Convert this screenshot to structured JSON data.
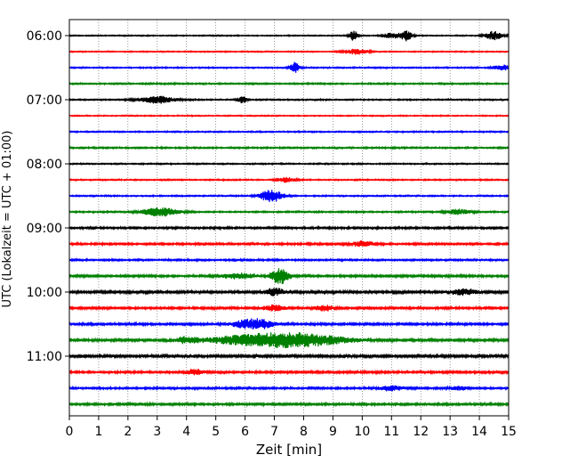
{
  "chart_data": {
    "type": "line",
    "title": "",
    "xlabel": "Zeit  [min]",
    "ylabel": "UTC (Lokalzeit = UTC + 01:00)",
    "xlim": [
      0,
      15
    ],
    "xticks": [
      0,
      1,
      2,
      3,
      4,
      5,
      6,
      7,
      8,
      9,
      10,
      11,
      12,
      13,
      14,
      15
    ],
    "xtick_labels": [
      "0",
      "1",
      "2",
      "3",
      "4",
      "5",
      "6",
      "7",
      "8",
      "9",
      "10",
      "11",
      "12",
      "13",
      "14",
      "15"
    ],
    "yticks": [
      {
        "trace": 0,
        "label": "06:00"
      },
      {
        "trace": 4,
        "label": "07:00"
      },
      {
        "trace": 8,
        "label": "08:00"
      },
      {
        "trace": 12,
        "label": "09:00"
      },
      {
        "trace": 16,
        "label": "10:00"
      },
      {
        "trace": 20,
        "label": "11:00"
      }
    ],
    "trace_interval_minutes": 15,
    "grid": "vertical dotted",
    "color_cycle": [
      "#000000",
      "#ff0000",
      "#0000ff",
      "#008000"
    ],
    "series": [
      {
        "start": "06:00",
        "noise": 0.5,
        "events": [
          {
            "t": 9.7,
            "amp": 6,
            "dur": 0.15
          },
          {
            "t": 11.5,
            "amp": 6,
            "dur": 0.2
          },
          {
            "t": 14.5,
            "amp": 5,
            "dur": 0.3
          },
          {
            "t": 11.0,
            "amp": 3,
            "dur": 0.3
          }
        ]
      },
      {
        "start": "06:15",
        "noise": 0.5,
        "events": [
          {
            "t": 9.8,
            "amp": 3,
            "dur": 0.4
          }
        ]
      },
      {
        "start": "06:30",
        "noise": 0.6,
        "events": [
          {
            "t": 7.7,
            "amp": 6,
            "dur": 0.15
          },
          {
            "t": 14.8,
            "amp": 3,
            "dur": 0.3
          }
        ]
      },
      {
        "start": "06:45",
        "noise": 0.7,
        "events": []
      },
      {
        "start": "07:00",
        "noise": 0.6,
        "events": [
          {
            "t": 3.0,
            "amp": 4,
            "dur": 0.6
          },
          {
            "t": 5.9,
            "amp": 4,
            "dur": 0.15
          }
        ]
      },
      {
        "start": "07:15",
        "noise": 0.5,
        "events": []
      },
      {
        "start": "07:30",
        "noise": 0.6,
        "events": []
      },
      {
        "start": "07:45",
        "noise": 0.7,
        "events": []
      },
      {
        "start": "08:00",
        "noise": 0.6,
        "events": []
      },
      {
        "start": "08:15",
        "noise": 0.6,
        "events": [
          {
            "t": 7.4,
            "amp": 3,
            "dur": 0.3
          }
        ]
      },
      {
        "start": "08:30",
        "noise": 0.6,
        "events": [
          {
            "t": 6.9,
            "amp": 7,
            "dur": 0.4
          }
        ]
      },
      {
        "start": "08:45",
        "noise": 0.7,
        "events": [
          {
            "t": 3.1,
            "amp": 5,
            "dur": 0.6
          },
          {
            "t": 13.3,
            "amp": 3,
            "dur": 0.4
          }
        ]
      },
      {
        "start": "09:00",
        "noise": 0.9,
        "events": []
      },
      {
        "start": "09:15",
        "noise": 0.9,
        "events": [
          {
            "t": 10.0,
            "amp": 3,
            "dur": 0.4
          }
        ]
      },
      {
        "start": "09:30",
        "noise": 0.8,
        "events": []
      },
      {
        "start": "09:45",
        "noise": 1.0,
        "events": [
          {
            "t": 7.2,
            "amp": 9,
            "dur": 0.3
          },
          {
            "t": 5.8,
            "amp": 3,
            "dur": 0.6
          }
        ]
      },
      {
        "start": "10:00",
        "noise": 1.2,
        "events": [
          {
            "t": 7.0,
            "amp": 4,
            "dur": 0.3
          },
          {
            "t": 13.5,
            "amp": 3,
            "dur": 0.5
          }
        ]
      },
      {
        "start": "10:15",
        "noise": 1.0,
        "events": [
          {
            "t": 7.0,
            "amp": 3,
            "dur": 0.4
          },
          {
            "t": 8.7,
            "amp": 3,
            "dur": 0.3
          }
        ]
      },
      {
        "start": "10:30",
        "noise": 1.0,
        "events": [
          {
            "t": 6.5,
            "amp": 5,
            "dur": 0.5
          },
          {
            "t": 5.9,
            "amp": 3,
            "dur": 0.4
          }
        ]
      },
      {
        "start": "10:45",
        "noise": 1.1,
        "events": [
          {
            "t": 6.5,
            "amp": 6,
            "dur": 1.6
          },
          {
            "t": 8.2,
            "amp": 5,
            "dur": 1.4
          },
          {
            "t": 4.0,
            "amp": 3,
            "dur": 0.4
          }
        ]
      },
      {
        "start": "11:00",
        "noise": 1.3,
        "events": []
      },
      {
        "start": "11:15",
        "noise": 1.0,
        "events": [
          {
            "t": 4.3,
            "amp": 3,
            "dur": 0.3
          }
        ]
      },
      {
        "start": "11:30",
        "noise": 0.9,
        "events": [
          {
            "t": 11.0,
            "amp": 3,
            "dur": 0.4
          },
          {
            "t": 13.3,
            "amp": 2,
            "dur": 0.3
          }
        ]
      },
      {
        "start": "11:45",
        "noise": 1.0,
        "events": []
      }
    ]
  }
}
